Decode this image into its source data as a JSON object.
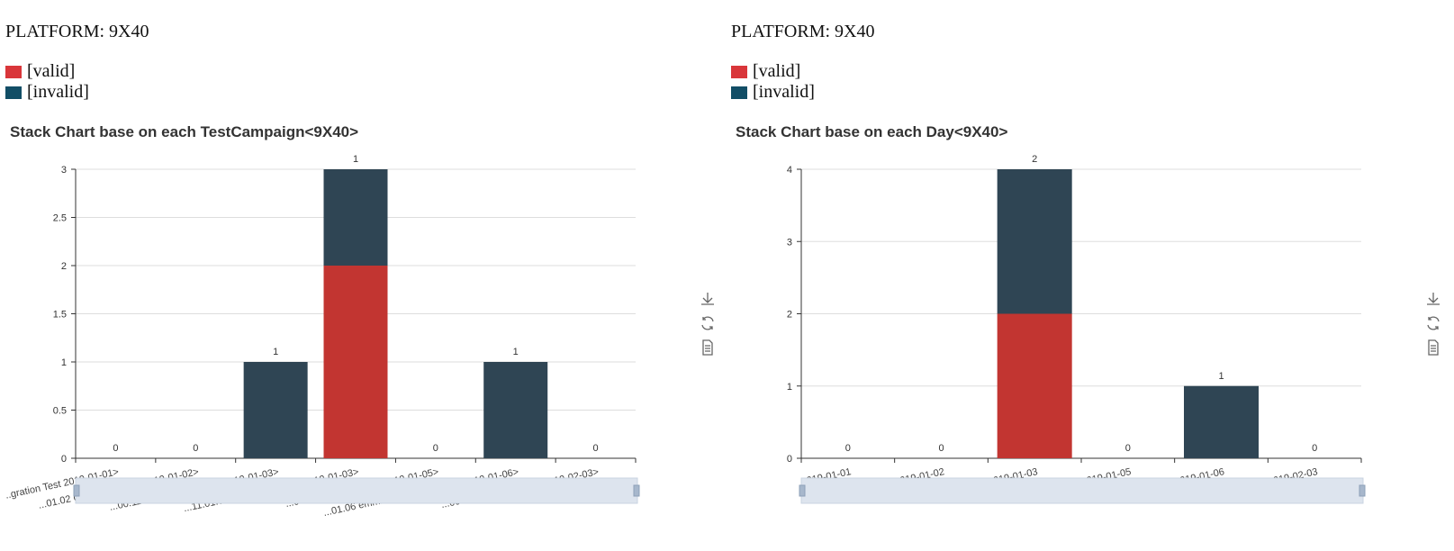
{
  "panels": [
    {
      "platform": "PLATFORM: 9X40",
      "legend": [
        {
          "label": "[valid]",
          "color": "#c23531"
        },
        {
          "label": "[invalid]",
          "color": "#124e66"
        }
      ],
      "chart_title": "Stack Chart base on each TestCampaign<9X40>"
    },
    {
      "platform": "PLATFORM: 9X40",
      "legend": [
        {
          "label": "[valid]",
          "color": "#c23531"
        },
        {
          "label": "[invalid]",
          "color": "#124e66"
        }
      ],
      "chart_title": "Stack Chart base on each Day<9X40>"
    }
  ],
  "colors": {
    "valid": "#c23531",
    "invalid": "#2f4554",
    "grid": "#dddddd",
    "axis": "#333333",
    "zoom_fill": "#dde4ee",
    "zoom_border": "#c9d3e0"
  },
  "chart_data": [
    {
      "type": "bar",
      "stacked": true,
      "title": "Stack Chart base on each TestCampaign<9X40>",
      "categories": [
        "...gration Test 2019-01-01>",
        "...01.02 customized test 2019-01-02>",
        "...00.11.01.03 Nightly Test 2019-01-03>",
        "...11.01.04 Regression Test 2019-01-03>",
        "...00.11.01.05 Hooooo 2019-01-05>",
        "...01.06 emmmmmmmmmmmm 2019-01-06>",
        "...00.11.01.06 REX test 2019-02-03>"
      ],
      "series": [
        {
          "name": "[valid]",
          "values": [
            0,
            0,
            0,
            2,
            0,
            0,
            0
          ]
        },
        {
          "name": "[invalid]",
          "values": [
            0,
            0,
            1,
            1,
            0,
            1,
            0
          ]
        }
      ],
      "top_labels": [
        "0",
        "0",
        "1",
        "1",
        "0",
        "1",
        "0"
      ],
      "ylim": [
        0,
        3
      ],
      "yticks": [
        "0",
        "0.5",
        "1",
        "1.5",
        "2",
        "2.5",
        "3"
      ],
      "ytick_values": [
        0,
        0.5,
        1,
        1.5,
        2,
        2.5,
        3
      ],
      "xlabel_rotated": true,
      "grid": true
    },
    {
      "type": "bar",
      "stacked": true,
      "title": "Stack Chart base on each Day<9X40>",
      "categories": [
        "2019-01-01",
        "2019-01-02",
        "2019-01-03",
        "2019-01-05",
        "2019-01-06",
        "2019-02-03"
      ],
      "series": [
        {
          "name": "[valid]",
          "values": [
            0,
            0,
            2,
            0,
            0,
            0
          ]
        },
        {
          "name": "[invalid]",
          "values": [
            0,
            0,
            2,
            0,
            1,
            0
          ]
        }
      ],
      "top_labels": [
        "0",
        "0",
        "2",
        "0",
        "1",
        "0"
      ],
      "ylim": [
        0,
        4
      ],
      "yticks": [
        "0",
        "1",
        "2",
        "3",
        "4"
      ],
      "ytick_values": [
        0,
        1,
        2,
        3,
        4
      ],
      "xlabel_rotated": true,
      "grid": true
    }
  ],
  "toolbox": [
    "download-icon",
    "refresh-icon",
    "data-view-icon"
  ]
}
